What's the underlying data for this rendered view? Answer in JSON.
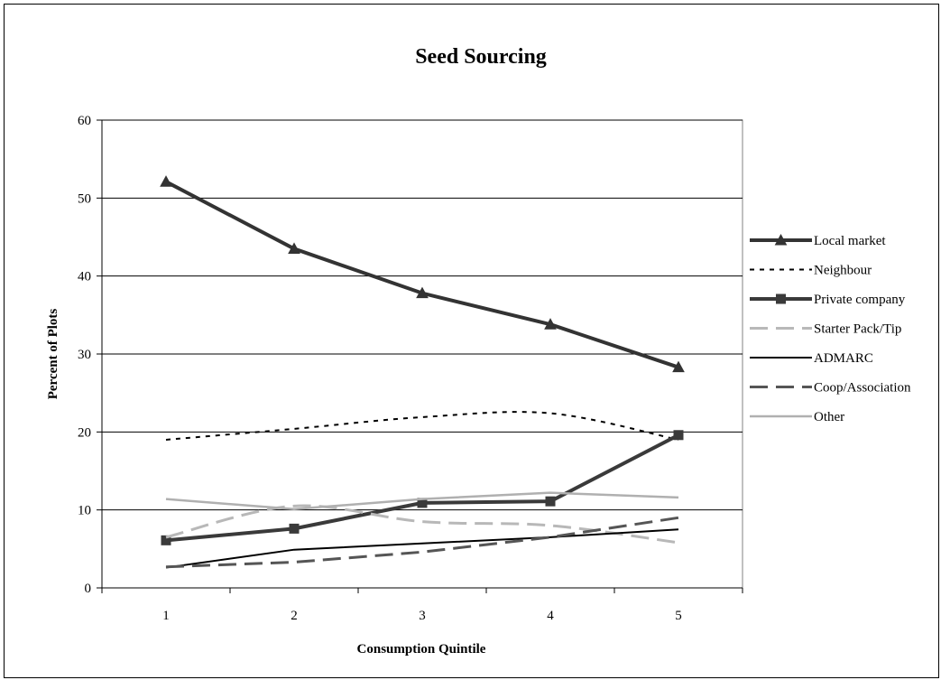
{
  "chart_data": {
    "type": "line",
    "title": "Seed Sourcing",
    "xlabel": "Consumption Quintile",
    "ylabel": "Percent of Plots",
    "categories": [
      "1",
      "2",
      "3",
      "4",
      "5"
    ],
    "ylim": [
      0,
      60
    ],
    "yticks": [
      0,
      10,
      20,
      30,
      40,
      50,
      60
    ],
    "grid": "horizontal",
    "legend_position": "right",
    "series": [
      {
        "name": "Local market",
        "values": [
          52.1,
          43.5,
          37.8,
          33.8,
          28.3
        ],
        "color": "#333333",
        "dash": "solid",
        "width": 4,
        "marker": "triangle",
        "smooth": false
      },
      {
        "name": "Neighbour",
        "values": [
          19.0,
          20.4,
          21.9,
          22.4,
          19.0
        ],
        "color": "#000000",
        "dash": "dotted",
        "width": 2,
        "marker": "none",
        "smooth": true
      },
      {
        "name": "Private company",
        "values": [
          6.1,
          7.6,
          10.9,
          11.1,
          19.6
        ],
        "color": "#3a3a3a",
        "dash": "solid",
        "width": 4,
        "marker": "square",
        "smooth": false
      },
      {
        "name": "Starter Pack/Tip",
        "values": [
          6.5,
          10.5,
          8.5,
          8.0,
          5.8
        ],
        "color": "#b8b8b8",
        "dash": "dashed",
        "width": 3,
        "marker": "none",
        "smooth": true
      },
      {
        "name": "ADMARC",
        "values": [
          2.6,
          4.9,
          5.7,
          6.5,
          7.5
        ],
        "color": "#000000",
        "dash": "solid",
        "width": 2,
        "marker": "none",
        "smooth": false
      },
      {
        "name": "Coop/Association",
        "values": [
          2.7,
          3.3,
          4.6,
          6.5,
          9.0
        ],
        "color": "#555555",
        "dash": "dashed",
        "width": 3,
        "marker": "none",
        "smooth": false
      },
      {
        "name": "Other",
        "values": [
          11.4,
          10.1,
          11.4,
          12.2,
          11.6
        ],
        "color": "#b0b0b0",
        "dash": "solid",
        "width": 2.5,
        "marker": "none",
        "smooth": false
      }
    ]
  }
}
